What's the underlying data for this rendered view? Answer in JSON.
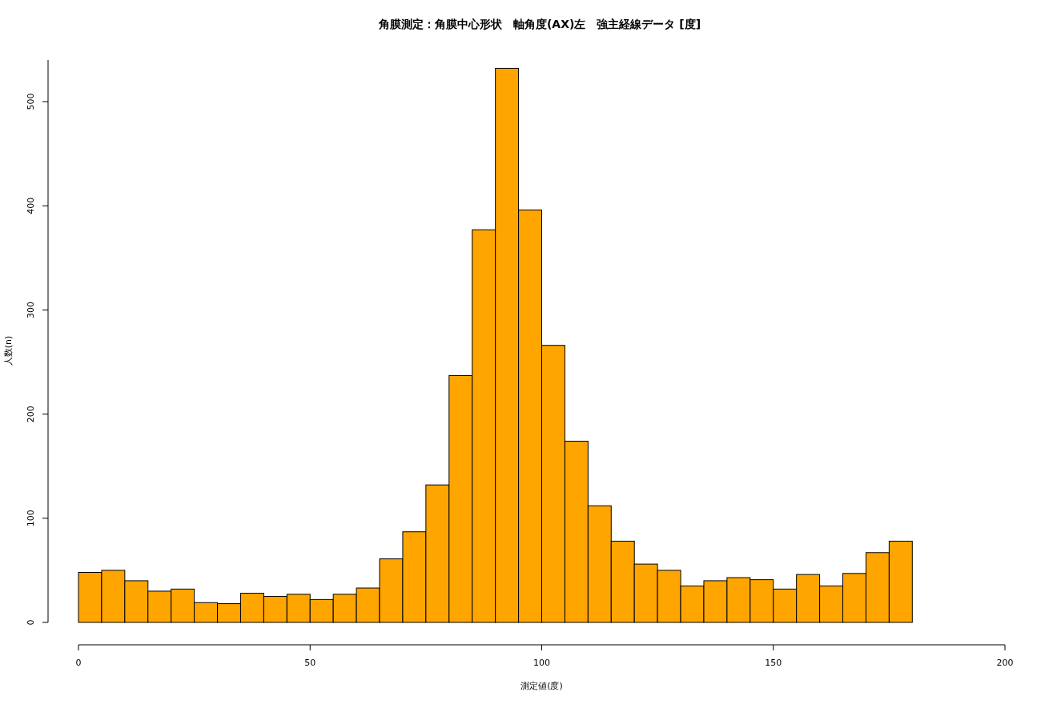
{
  "chart_data": {
    "type": "histogram",
    "title": "角膜測定：角膜中心形状　軸角度(AX)左　強主経線データ [度]",
    "xlabel": "測定値(度)",
    "ylabel": "人数(n)",
    "bins": [
      0,
      5,
      10,
      15,
      20,
      25,
      30,
      35,
      40,
      45,
      50,
      55,
      60,
      65,
      70,
      75,
      80,
      85,
      90,
      95,
      100,
      105,
      110,
      115,
      120,
      125,
      130,
      135,
      140,
      145,
      150,
      155,
      160,
      165,
      170,
      175,
      180
    ],
    "values": [
      48,
      50,
      40,
      30,
      32,
      19,
      18,
      28,
      25,
      27,
      22,
      27,
      33,
      61,
      87,
      132,
      237,
      377,
      532,
      396,
      266,
      174,
      112,
      78,
      56,
      50,
      35,
      40,
      43,
      41,
      32,
      46,
      35,
      47,
      67,
      78
    ],
    "color": "#ffa500",
    "xlim": [
      0,
      200
    ],
    "xticks": [
      0,
      50,
      100,
      150,
      200
    ],
    "ylim": [
      0,
      540
    ],
    "yticks": [
      0,
      100,
      200,
      300,
      400,
      500
    ],
    "grid": false
  }
}
